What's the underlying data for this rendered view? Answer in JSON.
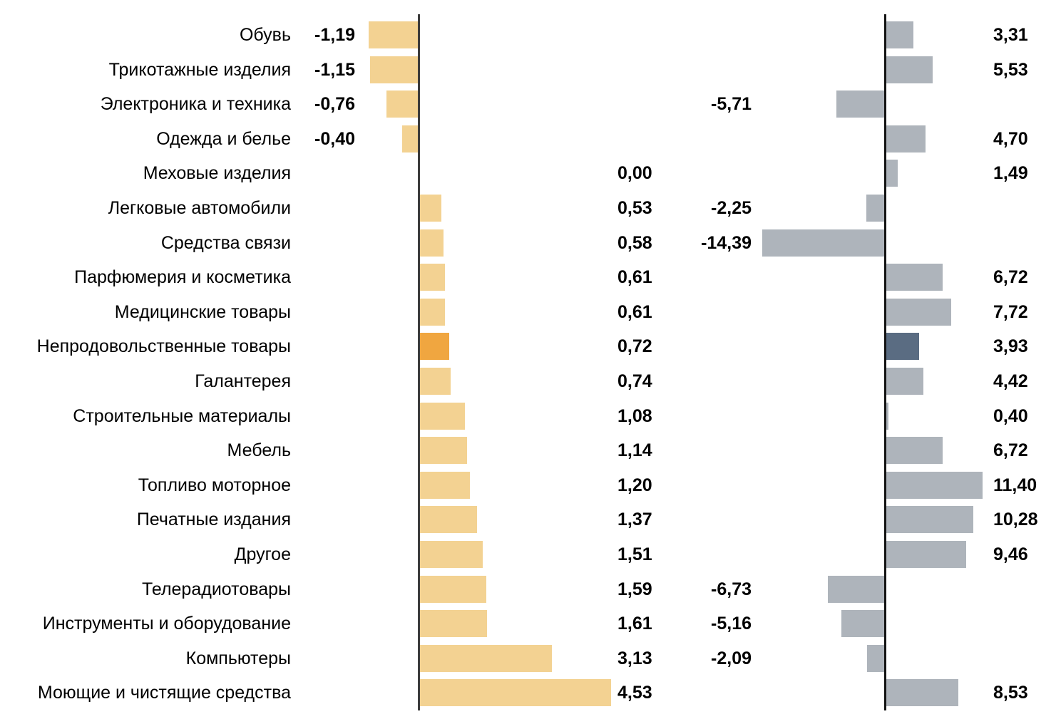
{
  "colors": {
    "bar_left": "#F3D292",
    "bar_left_highlight": "#F0A640",
    "bar_right": "#AEB4BB",
    "bar_right_highlight": "#5A6C82",
    "axis_left": "#3C3C3C",
    "axis_right": "#141414",
    "text": "#000000",
    "background": "#FFFFFF"
  },
  "chart_data": {
    "type": "bar",
    "orientation": "horizontal",
    "layout": "dual-panel butterfly chart, shared category axis, zero baselines as vertical lines",
    "grid": false,
    "legend": false,
    "title": "",
    "xlabel": "",
    "ylabel": "",
    "categories": [
      "Обувь",
      "Трикотажные изделия",
      "Электроника и техника",
      "Одежда и белье",
      "Меховые изделия",
      "Легковые автомобили",
      "Средства связи",
      "Парфюмерия и косметика",
      "Медицинские товары",
      "Непродовольственные товары",
      "Галантерея",
      "Строительные материалы",
      "Мебель",
      "Топливо моторное",
      "Печатные издания",
      "Другое",
      "Телерадиотовары",
      "Инструменты и оборудование",
      "Компьютеры",
      "Моющие и чистящие средства"
    ],
    "series": [
      {
        "name": "left-panel",
        "values": [
          -1.19,
          -1.15,
          -0.76,
          -0.4,
          0.0,
          0.53,
          0.58,
          0.61,
          0.61,
          0.72,
          0.74,
          1.08,
          1.14,
          1.2,
          1.37,
          1.51,
          1.59,
          1.61,
          3.13,
          4.53
        ]
      },
      {
        "name": "right-panel",
        "values": [
          3.31,
          5.53,
          -5.71,
          4.7,
          1.49,
          -2.25,
          -14.39,
          6.72,
          7.72,
          3.93,
          4.42,
          0.4,
          6.72,
          11.4,
          10.28,
          9.46,
          -6.73,
          -5.16,
          -2.09,
          8.53
        ]
      }
    ],
    "value_labels": {
      "left": [
        "-1,19",
        "-1,15",
        "-0,76",
        "-0,40",
        "0,00",
        "0,53",
        "0,58",
        "0,61",
        "0,61",
        "0,72",
        "0,74",
        "1,08",
        "1,14",
        "1,20",
        "1,37",
        "1,51",
        "1,59",
        "1,61",
        "3,13",
        "4,53"
      ],
      "right": [
        "3,31",
        "5,53",
        "-5,71",
        "4,70",
        "1,49",
        "-2,25",
        "-14,39",
        "6,72",
        "7,72",
        "3,93",
        "4,42",
        "0,40",
        "6,72",
        "11,40",
        "10,28",
        "9,46",
        "-6,73",
        "-5,16",
        "-2,09",
        "8,53"
      ]
    },
    "highlight_index": 9,
    "highlighted_category": "Непродовольственные товары"
  }
}
